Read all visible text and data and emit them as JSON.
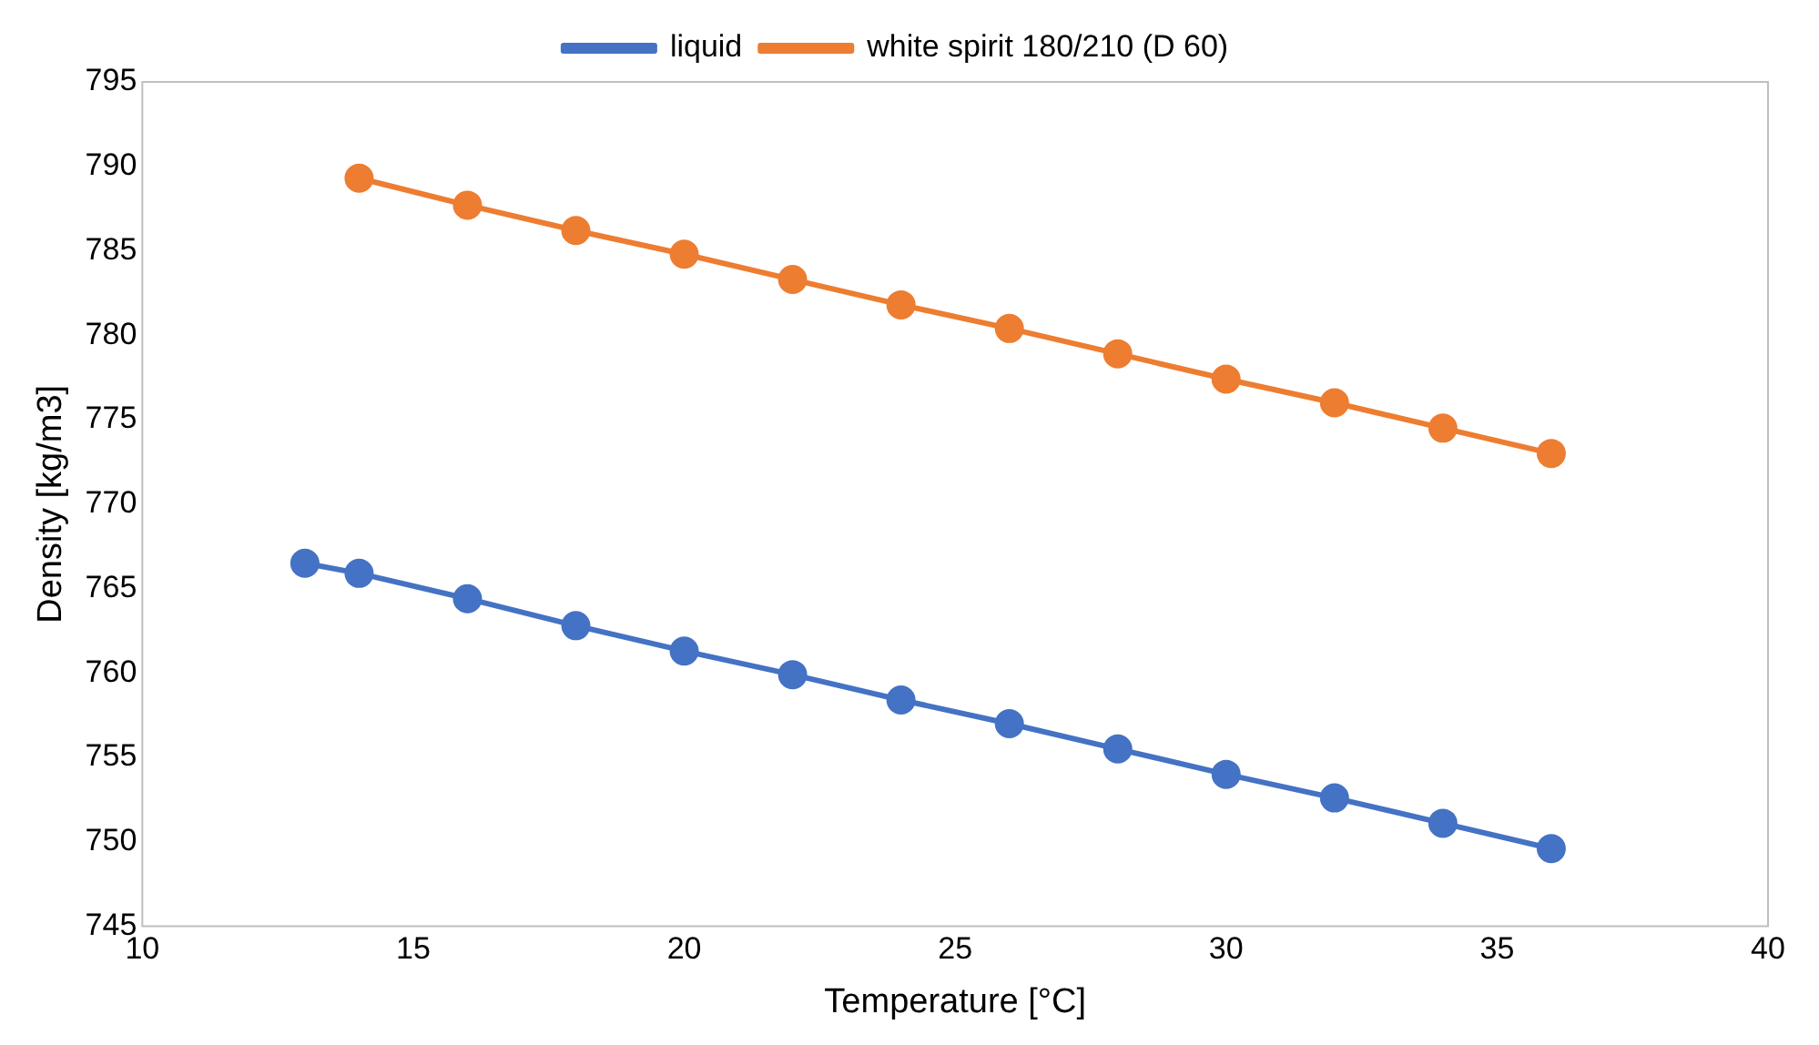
{
  "chart_data": {
    "type": "line",
    "xlabel": "Temperature [°C]",
    "ylabel": "Density [kg/m3]",
    "series": [
      {
        "name": "liquid",
        "color": "#4472c4",
        "x": [
          13,
          14,
          16,
          18,
          20,
          22,
          24,
          26,
          28,
          30,
          32,
          34,
          36
        ],
        "values": [
          766.5,
          765.9,
          764.4,
          762.8,
          761.3,
          759.9,
          758.4,
          757.0,
          755.5,
          754.0,
          752.6,
          751.1,
          749.6
        ]
      },
      {
        "name": "white spirit 180/210 (D 60)",
        "color": "#ed7d31",
        "x": [
          14,
          16,
          18,
          20,
          22,
          24,
          26,
          28,
          30,
          32,
          34,
          36
        ],
        "values": [
          789.3,
          787.7,
          786.2,
          784.8,
          783.3,
          781.8,
          780.4,
          778.9,
          777.4,
          776.0,
          774.5,
          773.0
        ]
      }
    ],
    "xlim": [
      10,
      40
    ],
    "xticks": [
      10,
      15,
      20,
      25,
      30,
      35,
      40
    ],
    "ylim": [
      745,
      795
    ],
    "yticks": [
      745,
      750,
      755,
      760,
      765,
      770,
      775,
      780,
      785,
      790,
      795
    ],
    "grid": false,
    "legend": "top",
    "marker": "circle",
    "line_style": "solid"
  }
}
